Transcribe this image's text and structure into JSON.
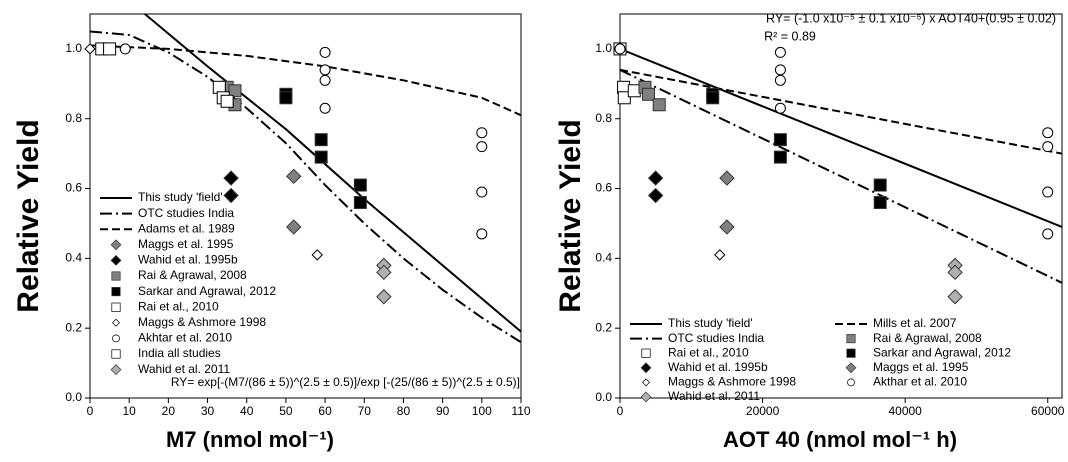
{
  "chart_data": [
    {
      "type": "scatter",
      "xlabel": "M7 (nmol mol⁻¹)",
      "ylabel": "Relative Yield",
      "xlim": [
        0,
        110
      ],
      "ylim": [
        0,
        1.1
      ],
      "xticks": [
        0,
        10,
        20,
        30,
        40,
        50,
        60,
        70,
        80,
        90,
        100,
        110
      ],
      "yticks": [
        {
          "value": 0,
          "label": "0.0"
        },
        {
          "value": 0.2,
          "label": "0.2"
        },
        {
          "value": 0.4,
          "label": "0.4"
        },
        {
          "value": 0.6,
          "label": "0.6"
        },
        {
          "value": 0.8,
          "label": "0.8"
        },
        {
          "value": 1,
          "label": "1.0"
        }
      ],
      "legend": "lower left",
      "legend_columns": 1,
      "annotations": [
        "RY= exp[-(M7/(86 ± 5))^(2.5 ± 0.5)]/exp [-(25/(86 ± 5))^(2.5 ± 0.5)]"
      ],
      "series": [
        {
          "name": "This study 'field'",
          "type": "line",
          "style": "solid",
          "color": "#000000",
          "x": [
            14,
            30,
            50,
            70,
            90,
            110
          ],
          "values": [
            1.1,
            0.95,
            0.77,
            0.57,
            0.38,
            0.19
          ]
        },
        {
          "name": "OTC studies India",
          "type": "line",
          "style": "dashdot",
          "color": "#000000",
          "x": [
            0,
            10,
            20,
            30,
            40,
            50,
            60,
            70,
            80,
            90,
            100,
            110
          ],
          "values": [
            1.05,
            1.04,
            0.99,
            0.92,
            0.83,
            0.73,
            0.61,
            0.5,
            0.4,
            0.31,
            0.23,
            0.16
          ]
        },
        {
          "name": "Adams et al. 1989",
          "type": "line",
          "style": "dashed",
          "color": "#000000",
          "x": [
            0,
            20,
            40,
            60,
            80,
            100,
            110
          ],
          "values": [
            1.01,
            1.0,
            0.98,
            0.95,
            0.91,
            0.86,
            0.81
          ]
        },
        {
          "name": "Maggs et al. 1995",
          "type": "scatter",
          "marker": "diamond",
          "color": "#808080",
          "x": [
            52,
            52
          ],
          "values": [
            0.635,
            0.49
          ]
        },
        {
          "name": "Wahid et al. 1995b",
          "type": "scatter",
          "marker": "diamond",
          "color": "#000000",
          "x": [
            36,
            36
          ],
          "values": [
            0.63,
            0.58
          ]
        },
        {
          "name": "Rai & Agrawal, 2008",
          "type": "scatter",
          "marker": "square",
          "color": "#808080",
          "x": [
            35,
            37,
            37
          ],
          "values": [
            0.89,
            0.88,
            0.84
          ]
        },
        {
          "name": "Sarkar and Agrawal, 2012",
          "type": "scatter",
          "marker": "square",
          "color": "#000000",
          "x": [
            50,
            50,
            59,
            59,
            69,
            69
          ],
          "values": [
            0.87,
            0.86,
            0.74,
            0.69,
            0.61,
            0.56
          ]
        },
        {
          "name": "Rai et al., 2010",
          "type": "scatter",
          "marker": "square",
          "color": "#ffffff",
          "x": [
            33,
            34,
            35
          ],
          "values": [
            0.89,
            0.86,
            0.85
          ]
        },
        {
          "name": "Maggs & Ashmore 1998",
          "type": "scatter",
          "marker": "smalldiamond",
          "color": "#ffffff",
          "x": [
            0,
            58
          ],
          "values": [
            1.0,
            0.41
          ]
        },
        {
          "name": "Akhtar et al. 2010",
          "type": "scatter",
          "marker": "circle",
          "color": "#ffffff",
          "x": [
            9,
            60,
            60,
            60,
            60,
            100,
            100,
            100,
            100
          ],
          "values": [
            1.0,
            0.99,
            0.94,
            0.91,
            0.83,
            0.76,
            0.72,
            0.59,
            0.47
          ]
        },
        {
          "name": "India all studies",
          "type": "scatter",
          "marker": "square",
          "color": "#ffffff",
          "x": [
            3,
            5
          ],
          "values": [
            1.0,
            1.0
          ]
        },
        {
          "name": "Wahid et al. 2011",
          "type": "scatter",
          "marker": "diamond",
          "color": "#b0b0b0",
          "x": [
            75,
            75,
            75
          ],
          "values": [
            0.38,
            0.36,
            0.29
          ]
        }
      ]
    },
    {
      "type": "scatter",
      "xlabel": "AOT 40 (nmol mol⁻¹ h)",
      "ylabel": "Relative Yield",
      "xlim": [
        0,
        62000
      ],
      "ylim": [
        0,
        1.1
      ],
      "xticks": [
        0,
        20000,
        40000,
        60000
      ],
      "yticks": [
        {
          "value": 0,
          "label": "0.0"
        },
        {
          "value": 0.2,
          "label": "0.2"
        },
        {
          "value": 0.4,
          "label": "0.4"
        },
        {
          "value": 0.6,
          "label": "0.6"
        },
        {
          "value": 0.8,
          "label": "0.8"
        },
        {
          "value": 1,
          "label": "1.0"
        }
      ],
      "legend": "lower center",
      "legend_columns": 2,
      "annotations": [
        "RY= (-1.0 x10⁻⁵ ± 0.1 x10⁻⁵) x AOT40+(0.95 ± 0.02)",
        "R² = 0.89"
      ],
      "series": [
        {
          "name": "This study 'field'",
          "type": "line",
          "style": "solid",
          "color": "#000000",
          "x": [
            0,
            62000
          ],
          "values": [
            1.0,
            0.49
          ]
        },
        {
          "name": "OTC studies  India",
          "type": "line",
          "style": "dashdot",
          "color": "#000000",
          "x": [
            0,
            62000
          ],
          "values": [
            0.94,
            0.33
          ]
        },
        {
          "name": "Rai et al., 2010",
          "type": "scatter",
          "marker": "square",
          "color": "#ffffff",
          "x": [
            0,
            500,
            600,
            2000
          ],
          "values": [
            1.0,
            0.89,
            0.86,
            0.88
          ]
        },
        {
          "name": "Wahid et al. 1995b",
          "type": "scatter",
          "marker": "diamond",
          "color": "#000000",
          "x": [
            5000,
            5000
          ],
          "values": [
            0.63,
            0.58
          ]
        },
        {
          "name": "Maggs & Ashmore 1998",
          "type": "scatter",
          "marker": "smalldiamond",
          "color": "#ffffff",
          "x": [
            0,
            14000
          ],
          "values": [
            1.0,
            0.41
          ]
        },
        {
          "name": "Wahid et al. 2011",
          "type": "scatter",
          "marker": "diamond",
          "color": "#b0b0b0",
          "x": [
            47000,
            47000,
            47000
          ],
          "values": [
            0.38,
            0.36,
            0.29
          ]
        },
        {
          "name": "Mills et al. 2007",
          "type": "line",
          "style": "dashed",
          "color": "#000000",
          "x": [
            0,
            62000
          ],
          "values": [
            0.94,
            0.7
          ]
        },
        {
          "name": "Rai & Agrawal, 2008",
          "type": "scatter",
          "marker": "square",
          "color": "#808080",
          "x": [
            3500,
            4000,
            5500
          ],
          "values": [
            0.89,
            0.87,
            0.84
          ]
        },
        {
          "name": "Sarkar and Agrawal, 2012",
          "type": "scatter",
          "marker": "square",
          "color": "#000000",
          "x": [
            13000,
            13000,
            22500,
            22500,
            36500,
            36500
          ],
          "values": [
            0.87,
            0.86,
            0.74,
            0.69,
            0.61,
            0.56
          ]
        },
        {
          "name": "Maggs et al. 1995",
          "type": "scatter",
          "marker": "diamond",
          "color": "#808080",
          "x": [
            15000,
            15000
          ],
          "values": [
            0.63,
            0.49
          ]
        },
        {
          "name": "Akthar et al. 2010",
          "type": "scatter",
          "marker": "circle",
          "color": "#ffffff",
          "x": [
            0,
            22500,
            22500,
            22500,
            22500,
            60000,
            60000,
            60000,
            60000
          ],
          "values": [
            1.0,
            0.99,
            0.94,
            0.91,
            0.83,
            0.76,
            0.72,
            0.59,
            0.47
          ]
        }
      ]
    }
  ]
}
